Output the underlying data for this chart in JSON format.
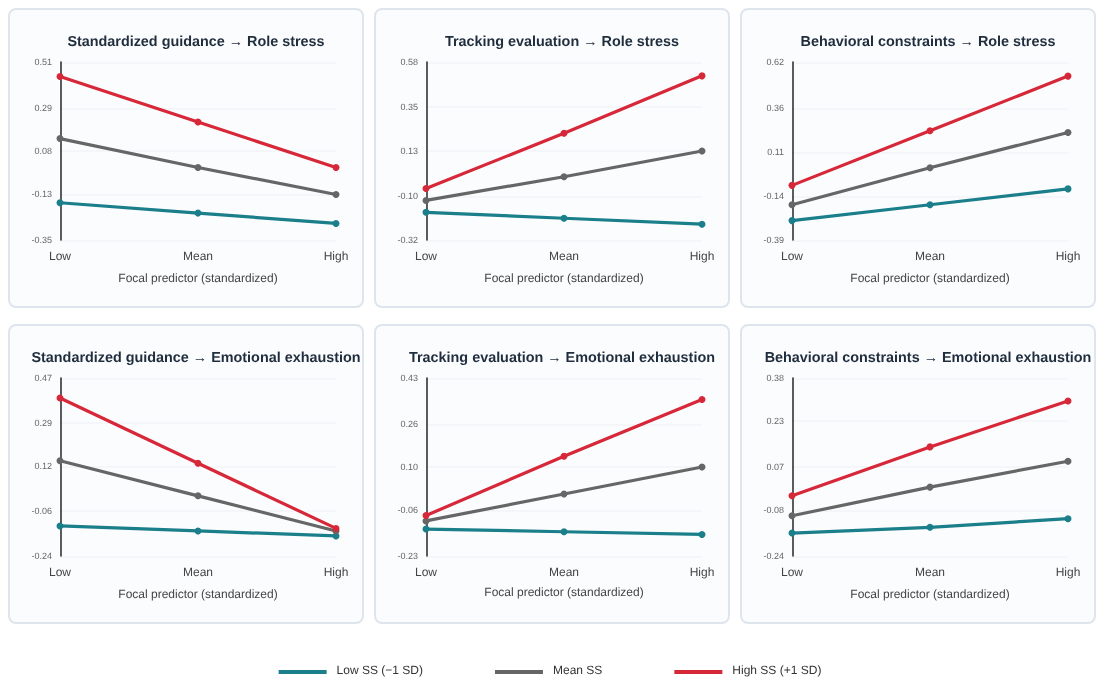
{
  "chart_data": [
    {
      "type": "line",
      "title": "Standardized guidance → Role stress",
      "xlabel": "Focal predictor (standardized)",
      "categories": [
        "Low",
        "Mean",
        "High"
      ],
      "ylim": [
        -0.35,
        0.51
      ],
      "yticks": [
        -0.35,
        -0.13,
        0.08,
        0.29,
        0.51
      ],
      "grid": "y",
      "marker": "circle",
      "line_style": "solid",
      "series": [
        {
          "color": "#1a7f8a",
          "values": [
            -0.17,
            -0.22,
            -0.27
          ]
        },
        {
          "color": "#666666",
          "values": [
            0.14,
            0.0,
            -0.13
          ]
        },
        {
          "color": "#d62839",
          "values": [
            0.44,
            0.22,
            0.0
          ]
        }
      ]
    },
    {
      "type": "line",
      "title": "Tracking evaluation → Role stress",
      "xlabel": "Focal predictor (standardized)",
      "categories": [
        "Low",
        "Mean",
        "High"
      ],
      "ylim": [
        -0.32,
        0.58
      ],
      "yticks": [
        -0.32,
        {
          "value": -0.1,
          "label": "-0.10"
        },
        0.13,
        0.35,
        0.58
      ],
      "grid": "y",
      "marker": "circle",
      "line_style": "solid",
      "series": [
        {
          "color": "#1a7f8a",
          "values": [
            -0.18,
            -0.21,
            -0.24
          ]
        },
        {
          "color": "#666666",
          "values": [
            -0.12,
            0.0,
            0.13
          ]
        },
        {
          "color": "#d62839",
          "values": [
            -0.06,
            0.22,
            0.51
          ]
        }
      ]
    },
    {
      "type": "line",
      "title": "Behavioral constraints → Role stress",
      "xlabel": "Focal predictor (standardized)",
      "categories": [
        "Low",
        "Mean",
        "High"
      ],
      "ylim": [
        -0.39,
        0.62
      ],
      "yticks": [
        -0.39,
        -0.14,
        0.11,
        0.36,
        0.62
      ],
      "grid": "y",
      "marker": "circle",
      "line_style": "solid",
      "series": [
        {
          "color": "#1a7f8a",
          "values": [
            -0.28,
            -0.19,
            -0.1
          ]
        },
        {
          "color": "#666666",
          "values": [
            -0.19,
            0.02,
            0.22
          ]
        },
        {
          "color": "#d62839",
          "values": [
            -0.08,
            0.23,
            0.54
          ]
        }
      ]
    },
    {
      "type": "line",
      "title": "Standardized guidance → Emotional exhaustion",
      "xlabel": "Focal predictor (standardized)",
      "categories": [
        "Low",
        "Mean",
        "High"
      ],
      "ylim": [
        -0.24,
        0.47
      ],
      "yticks": [
        -0.24,
        -0.06,
        0.12,
        0.29,
        0.47
      ],
      "grid": "y",
      "marker": "circle",
      "line_style": "solid",
      "series": [
        {
          "color": "#1a7f8a",
          "values": [
            -0.12,
            -0.14,
            -0.16
          ]
        },
        {
          "color": "#666666",
          "values": [
            0.14,
            0.0,
            -0.14
          ]
        },
        {
          "color": "#d62839",
          "values": [
            0.39,
            0.13,
            -0.13
          ]
        }
      ]
    },
    {
      "type": "line",
      "title": "Tracking evaluation → Emotional exhaustion",
      "xlabel": "Focal predictor (standardized)",
      "categories": [
        "Low",
        "Mean",
        "High"
      ],
      "ylim": [
        -0.23,
        0.43
      ],
      "yticks": [
        -0.23,
        -0.06,
        {
          "value": 0.1,
          "label": "0.10"
        },
        0.26,
        0.43
      ],
      "grid": "y",
      "marker": "circle",
      "line_style": "solid",
      "legend": "bottom",
      "series": [
        {
          "name": "Low SS (−1 SD)",
          "color": "#1a7f8a",
          "values": [
            -0.13,
            -0.14,
            -0.15
          ]
        },
        {
          "name": "Mean SS",
          "color": "#666666",
          "values": [
            -0.1,
            0.0,
            0.1
          ]
        },
        {
          "name": "High SS (+1 SD)",
          "color": "#d62839",
          "values": [
            -0.08,
            0.14,
            0.35
          ]
        }
      ]
    },
    {
      "type": "line",
      "title": "Behavioral constraints → Emotional exhaustion",
      "xlabel": "Focal predictor (standardized)",
      "categories": [
        "Low",
        "Mean",
        "High"
      ],
      "ylim": [
        -0.24,
        0.38
      ],
      "yticks": [
        -0.24,
        -0.08,
        0.07,
        0.23,
        0.38
      ],
      "grid": "y",
      "marker": "circle",
      "line_style": "solid",
      "series": [
        {
          "color": "#1a7f8a",
          "values": [
            -0.16,
            -0.14,
            -0.11
          ]
        },
        {
          "color": "#666666",
          "values": [
            -0.1,
            0.0,
            0.09
          ]
        },
        {
          "color": "#d62839",
          "values": [
            -0.03,
            0.14,
            0.3
          ]
        }
      ]
    }
  ]
}
